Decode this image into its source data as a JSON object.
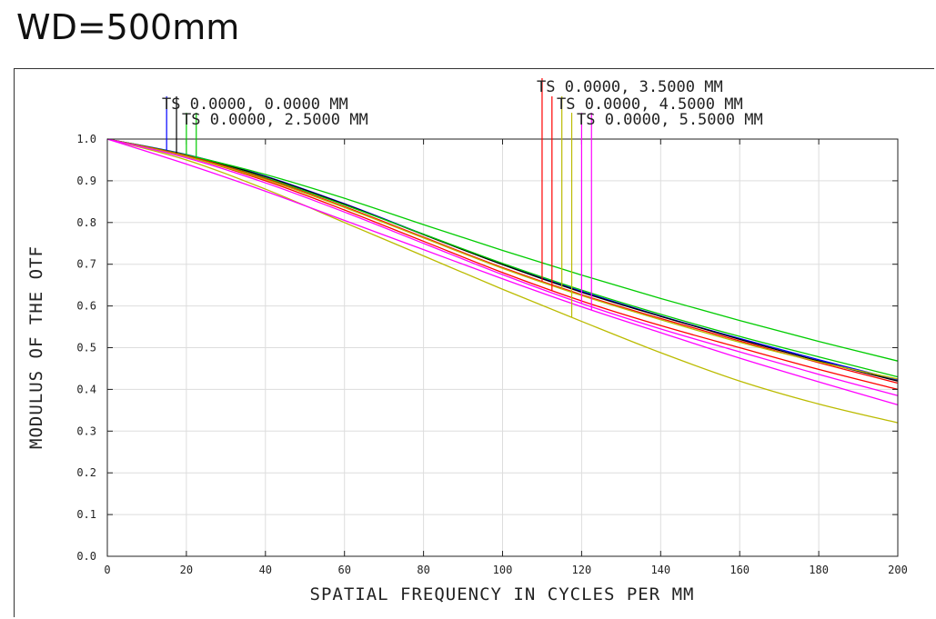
{
  "title": "WD=500mm",
  "chart_data": {
    "type": "line",
    "xlabel": "SPATIAL FREQUENCY IN CYCLES PER MM",
    "ylabel": "MODULUS OF THE OTF",
    "xlim": [
      0,
      200
    ],
    "ylim": [
      0,
      1
    ],
    "xticks": [
      0,
      20,
      40,
      60,
      80,
      100,
      120,
      140,
      160,
      180,
      200
    ],
    "xtick_labels": [
      "0",
      "20",
      "40",
      "60",
      "80",
      "100",
      "120",
      "140",
      "160",
      "180",
      "200"
    ],
    "yticks": [
      0,
      0.1,
      0.2,
      0.3,
      0.4,
      0.5,
      0.6,
      0.7,
      0.8,
      0.9,
      1.0
    ],
    "ytick_labels": [
      "0.0",
      "0.1",
      "0.2",
      "0.3",
      "0.4",
      "0.5",
      "0.6",
      "0.7",
      "0.8",
      "0.9",
      "1.0"
    ],
    "grid": true,
    "legend": [
      {
        "label": "TS 0.0000, 0.0000 MM",
        "color": "#0000ff"
      },
      {
        "label": "TS 0.0000, 2.5000 MM",
        "color": "#00cc00"
      },
      {
        "label": "TS 0.0000, 3.5000 MM",
        "color": "#ff0000"
      },
      {
        "label": "TS 0.0000, 4.5000 MM",
        "color": "#bbbb00"
      },
      {
        "label": "TS 0.0000, 5.5000 MM",
        "color": "#ff00ff"
      }
    ],
    "series": [
      {
        "name": "0.0000 T",
        "color": "#0000ff",
        "x": [
          0,
          20,
          40,
          60,
          80,
          100,
          120,
          140,
          160,
          180,
          200
        ],
        "y": [
          1.0,
          0.963,
          0.911,
          0.845,
          0.772,
          0.7,
          0.635,
          0.576,
          0.522,
          0.471,
          0.423
        ]
      },
      {
        "name": "0.0000 S",
        "color": "#000000",
        "x": [
          0,
          20,
          40,
          60,
          80,
          100,
          120,
          140,
          160,
          180,
          200
        ],
        "y": [
          1.0,
          0.962,
          0.91,
          0.844,
          0.771,
          0.699,
          0.633,
          0.575,
          0.52,
          0.468,
          0.42
        ]
      },
      {
        "name": "2.5000 T",
        "color": "#00cc00",
        "x": [
          0,
          20,
          40,
          60,
          80,
          100,
          120,
          140,
          160,
          180,
          200
        ],
        "y": [
          1.0,
          0.962,
          0.915,
          0.858,
          0.795,
          0.733,
          0.674,
          0.618,
          0.565,
          0.515,
          0.468
        ]
      },
      {
        "name": "2.5000 S",
        "color": "#00cc00",
        "x": [
          0,
          20,
          40,
          60,
          80,
          100,
          120,
          140,
          160,
          180,
          200
        ],
        "y": [
          1.0,
          0.96,
          0.907,
          0.842,
          0.772,
          0.702,
          0.638,
          0.58,
          0.527,
          0.478,
          0.43
        ]
      },
      {
        "name": "3.5000 T",
        "color": "#ff0000",
        "x": [
          0,
          20,
          40,
          60,
          80,
          100,
          120,
          140,
          160,
          180,
          200
        ],
        "y": [
          1.0,
          0.96,
          0.905,
          0.838,
          0.765,
          0.692,
          0.627,
          0.57,
          0.516,
          0.464,
          0.415
        ]
      },
      {
        "name": "3.5000 S",
        "color": "#ff0000",
        "x": [
          0,
          20,
          40,
          60,
          80,
          100,
          120,
          140,
          160,
          180,
          200
        ],
        "y": [
          1.0,
          0.958,
          0.9,
          0.83,
          0.755,
          0.68,
          0.612,
          0.553,
          0.5,
          0.448,
          0.4
        ]
      },
      {
        "name": "4.5000 T",
        "color": "#bbbb00",
        "x": [
          0,
          20,
          40,
          60,
          80,
          100,
          120,
          140,
          160,
          180,
          200
        ],
        "y": [
          1.0,
          0.958,
          0.903,
          0.836,
          0.763,
          0.69,
          0.625,
          0.567,
          0.513,
          0.466,
          0.425
        ]
      },
      {
        "name": "4.5000 S",
        "color": "#bbbb00",
        "x": [
          0,
          20,
          40,
          60,
          80,
          100,
          120,
          140,
          160,
          180,
          200
        ],
        "y": [
          1.0,
          0.95,
          0.88,
          0.8,
          0.72,
          0.64,
          0.563,
          0.488,
          0.42,
          0.365,
          0.32
        ]
      },
      {
        "name": "5.5000 T",
        "color": "#ff00ff",
        "x": [
          0,
          20,
          40,
          60,
          80,
          100,
          120,
          140,
          160,
          180,
          200
        ],
        "y": [
          1.0,
          0.955,
          0.895,
          0.825,
          0.75,
          0.675,
          0.606,
          0.545,
          0.49,
          0.436,
          0.385
        ]
      },
      {
        "name": "5.5000 S",
        "color": "#ff00ff",
        "x": [
          0,
          20,
          40,
          60,
          80,
          100,
          120,
          140,
          160,
          180,
          200
        ],
        "y": [
          1.0,
          0.94,
          0.875,
          0.805,
          0.735,
          0.665,
          0.598,
          0.536,
          0.475,
          0.418,
          0.363
        ]
      }
    ]
  }
}
